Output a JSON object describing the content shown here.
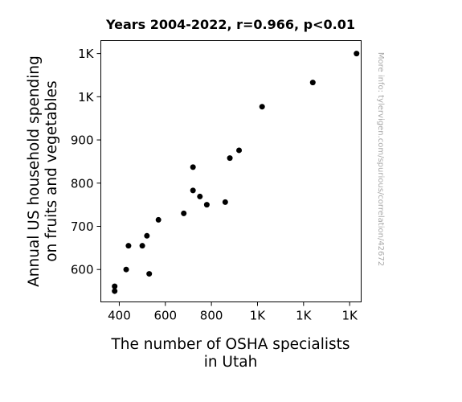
{
  "chart_data": {
    "type": "scatter",
    "title": "Years 2004-2022, r=0.966, p<0.01",
    "xlabel": [
      "The number of OSHA specialists",
      "in Utah"
    ],
    "ylabel": [
      "Annual US household spending",
      "on fruits and vegetables"
    ],
    "xlim": [
      320,
      1450
    ],
    "ylim": [
      525,
      1130
    ],
    "x_ticks": [
      {
        "value": 400,
        "label": "400"
      },
      {
        "value": 600,
        "label": "600"
      },
      {
        "value": 800,
        "label": "800"
      },
      {
        "value": 1000,
        "label": "1K"
      },
      {
        "value": 1200,
        "label": "1K"
      },
      {
        "value": 1400,
        "label": "1K"
      }
    ],
    "y_ticks": [
      {
        "value": 600,
        "label": "600"
      },
      {
        "value": 700,
        "label": "700"
      },
      {
        "value": 800,
        "label": "800"
      },
      {
        "value": 900,
        "label": "900"
      },
      {
        "value": 1000,
        "label": "1K"
      },
      {
        "value": 1100,
        "label": "1K"
      }
    ],
    "points": [
      {
        "x": 380,
        "y": 550
      },
      {
        "x": 380,
        "y": 561
      },
      {
        "x": 430,
        "y": 600
      },
      {
        "x": 440,
        "y": 655
      },
      {
        "x": 500,
        "y": 655
      },
      {
        "x": 520,
        "y": 678
      },
      {
        "x": 530,
        "y": 590
      },
      {
        "x": 570,
        "y": 715
      },
      {
        "x": 680,
        "y": 730
      },
      {
        "x": 720,
        "y": 837
      },
      {
        "x": 720,
        "y": 783
      },
      {
        "x": 750,
        "y": 769
      },
      {
        "x": 780,
        "y": 750
      },
      {
        "x": 860,
        "y": 756
      },
      {
        "x": 880,
        "y": 858
      },
      {
        "x": 920,
        "y": 876
      },
      {
        "x": 1020,
        "y": 977
      },
      {
        "x": 1240,
        "y": 1033
      },
      {
        "x": 1430,
        "y": 1100
      }
    ],
    "grid": false,
    "marker_color": "#000000",
    "side_note": "More info: tylervigen.com/spurious/correlation/42672"
  }
}
